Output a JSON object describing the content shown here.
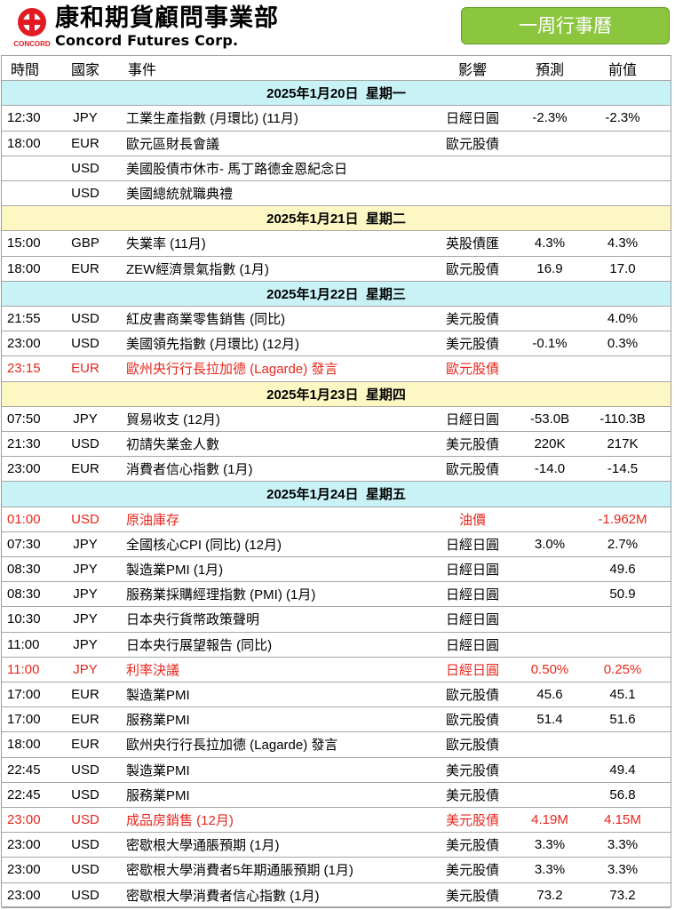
{
  "header": {
    "company_cn": "康和期貨顧問事業部",
    "company_en": "Concord Futures Corp.",
    "logo_text": "CONCORD",
    "calendar_label": "一周行事曆"
  },
  "columns": {
    "time": "時間",
    "country": "國家",
    "event": "事件",
    "impact": "影響",
    "forecast": "預測",
    "previous": "前值"
  },
  "colors": {
    "mon_band": "#c9f2f6",
    "tue_band": "#fdf7c4",
    "wed_band": "#c9f2f6",
    "thu_band": "#fdf7c4",
    "fri_band": "#c9f2f6",
    "highlight_red": "#e8261c",
    "badge_green": "#8cc63f"
  },
  "days": [
    {
      "date": "2025年1月20日",
      "weekday": "星期一",
      "band": "#c9f2f6",
      "events": [
        {
          "time": "12:30",
          "country": "JPY",
          "event": "工業生產指數 (月環比) (11月)",
          "impact": "日經日圓",
          "forecast": "-2.3%",
          "previous": "-2.3%",
          "red": false
        },
        {
          "time": "18:00",
          "country": "EUR",
          "event": "歐元區財長會議",
          "impact": "歐元股債",
          "forecast": "",
          "previous": "",
          "red": false
        },
        {
          "time": "",
          "country": "USD",
          "event": "美國股債市休市- 馬丁路德金恩紀念日",
          "impact": "",
          "forecast": "",
          "previous": "",
          "red": false
        },
        {
          "time": "",
          "country": "USD",
          "event": "美國總統就職典禮",
          "impact": "",
          "forecast": "",
          "previous": "",
          "red": false
        }
      ]
    },
    {
      "date": "2025年1月21日",
      "weekday": "星期二",
      "band": "#fdf7c4",
      "events": [
        {
          "time": "15:00",
          "country": "GBP",
          "event": "失業率 (11月)",
          "impact": "英股債匯",
          "forecast": "4.3%",
          "previous": "4.3%",
          "red": false
        },
        {
          "time": "18:00",
          "country": "EUR",
          "event": "ZEW經濟景氣指數 (1月)",
          "impact": "歐元股債",
          "forecast": "16.9",
          "previous": "17.0",
          "red": false
        }
      ]
    },
    {
      "date": "2025年1月22日",
      "weekday": "星期三",
      "band": "#c9f2f6",
      "events": [
        {
          "time": "21:55",
          "country": "USD",
          "event": "紅皮書商業零售銷售 (同比)",
          "impact": "美元股債",
          "forecast": "",
          "previous": "4.0%",
          "red": false
        },
        {
          "time": "23:00",
          "country": "USD",
          "event": "美國領先指數 (月環比) (12月)",
          "impact": "美元股債",
          "forecast": "-0.1%",
          "previous": "0.3%",
          "red": false
        },
        {
          "time": "23:15",
          "country": "EUR",
          "event": "歐州央行行長拉加德 (Lagarde) 發言",
          "impact": "歐元股債",
          "forecast": "",
          "previous": "",
          "red": true
        }
      ]
    },
    {
      "date": "2025年1月23日",
      "weekday": "星期四",
      "band": "#fdf7c4",
      "events": [
        {
          "time": "07:50",
          "country": "JPY",
          "event": "貿易收支 (12月)",
          "impact": "日經日圓",
          "forecast": "-53.0B",
          "previous": "-110.3B",
          "red": false
        },
        {
          "time": "21:30",
          "country": "USD",
          "event": "初請失業金人數",
          "impact": "美元股債",
          "forecast": "220K",
          "previous": "217K",
          "red": false
        },
        {
          "time": "23:00",
          "country": "EUR",
          "event": "消費者信心指數 (1月)",
          "impact": "歐元股債",
          "forecast": "-14.0",
          "previous": "-14.5",
          "red": false
        }
      ]
    },
    {
      "date": "2025年1月24日",
      "weekday": "星期五",
      "band": "#c9f2f6",
      "events": [
        {
          "time": "01:00",
          "country": "USD",
          "event": "原油庫存",
          "impact": "油價",
          "forecast": "",
          "previous": "-1.962M",
          "red": true
        },
        {
          "time": "07:30",
          "country": "JPY",
          "event": "全國核心CPI (同比) (12月)",
          "impact": "日經日圓",
          "forecast": "3.0%",
          "previous": "2.7%",
          "red": false
        },
        {
          "time": "08:30",
          "country": "JPY",
          "event": "製造業PMI (1月)",
          "impact": "日經日圓",
          "forecast": "",
          "previous": "49.6",
          "red": false
        },
        {
          "time": "08:30",
          "country": "JPY",
          "event": "服務業採購經理指數 (PMI) (1月)",
          "impact": "日經日圓",
          "forecast": "",
          "previous": "50.9",
          "red": false
        },
        {
          "time": "10:30",
          "country": "JPY",
          "event": "日本央行貨幣政策聲明",
          "impact": "日經日圓",
          "forecast": "",
          "previous": "",
          "red": false
        },
        {
          "time": "11:00",
          "country": "JPY",
          "event": "日本央行展望報告 (同比)",
          "impact": "日經日圓",
          "forecast": "",
          "previous": "",
          "red": false
        },
        {
          "time": "11:00",
          "country": "JPY",
          "event": "利率決議",
          "impact": "日經日圓",
          "forecast": "0.50%",
          "previous": "0.25%",
          "red": true
        },
        {
          "time": "17:00",
          "country": "EUR",
          "event": "製造業PMI",
          "impact": "歐元股債",
          "forecast": "45.6",
          "previous": "45.1",
          "red": false
        },
        {
          "time": "17:00",
          "country": "EUR",
          "event": "服務業PMI",
          "impact": "歐元股債",
          "forecast": "51.4",
          "previous": "51.6",
          "red": false
        },
        {
          "time": "18:00",
          "country": "EUR",
          "event": "歐州央行行長拉加德 (Lagarde) 發言",
          "impact": "歐元股債",
          "forecast": "",
          "previous": "",
          "red": false
        },
        {
          "time": "22:45",
          "country": "USD",
          "event": "製造業PMI",
          "impact": "美元股債",
          "forecast": "",
          "previous": "49.4",
          "red": false
        },
        {
          "time": "22:45",
          "country": "USD",
          "event": "服務業PMI",
          "impact": "美元股債",
          "forecast": "",
          "previous": "56.8",
          "red": false
        },
        {
          "time": "23:00",
          "country": "USD",
          "event": "成品房銷售 (12月)",
          "impact": "美元股債",
          "forecast": "4.19M",
          "previous": "4.15M",
          "red": true
        },
        {
          "time": "23:00",
          "country": "USD",
          "event": "密歇根大學通脹預期 (1月)",
          "impact": "美元股債",
          "forecast": "3.3%",
          "previous": "3.3%",
          "red": false
        },
        {
          "time": "23:00",
          "country": "USD",
          "event": "密歇根大學消費者5年期通脹預期 (1月)",
          "impact": "美元股債",
          "forecast": "3.3%",
          "previous": "3.3%",
          "red": false
        },
        {
          "time": "23:00",
          "country": "USD",
          "event": "密歇根大學消費者信心指數 (1月)",
          "impact": "美元股債",
          "forecast": "73.2",
          "previous": "73.2",
          "red": false
        }
      ]
    }
  ]
}
